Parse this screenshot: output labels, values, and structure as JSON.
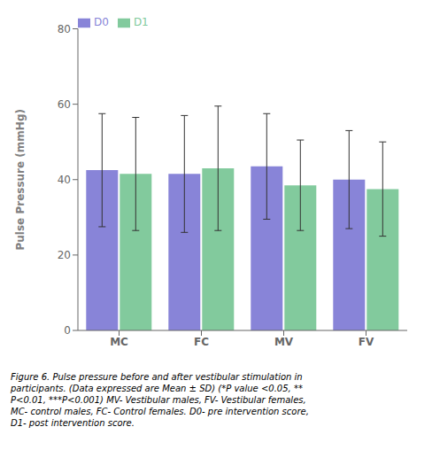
{
  "chart_data": {
    "type": "bar",
    "categories": [
      "MC",
      "FC",
      "MV",
      "FV"
    ],
    "series": [
      {
        "name": "D0",
        "values": [
          42.5,
          41.5,
          43.5,
          40.0
        ],
        "errors": [
          15.0,
          15.5,
          14.0,
          13.0
        ]
      },
      {
        "name": "D1",
        "values": [
          41.5,
          43.0,
          38.5,
          37.5
        ],
        "errors": [
          15.0,
          16.5,
          12.0,
          12.5
        ]
      }
    ],
    "ylabel": "Pulse Pressure (mmHg)",
    "ylim": [
      0,
      80
    ],
    "yticks": [
      0,
      20,
      40,
      60,
      80
    ],
    "legend": "upper left",
    "caption": "Figure 6. Pulse pressure before and after vestibular stimulation in\nparticipants. (Data expressed are Mean ± SD) (*P value <0.05, **\nP<0.01, ***P<0.001) MV- Vestibular males, FV- Vestibular females,\nMC- control males, FC- Control females. D0- pre intervention score,\nD1- post intervention score."
  }
}
